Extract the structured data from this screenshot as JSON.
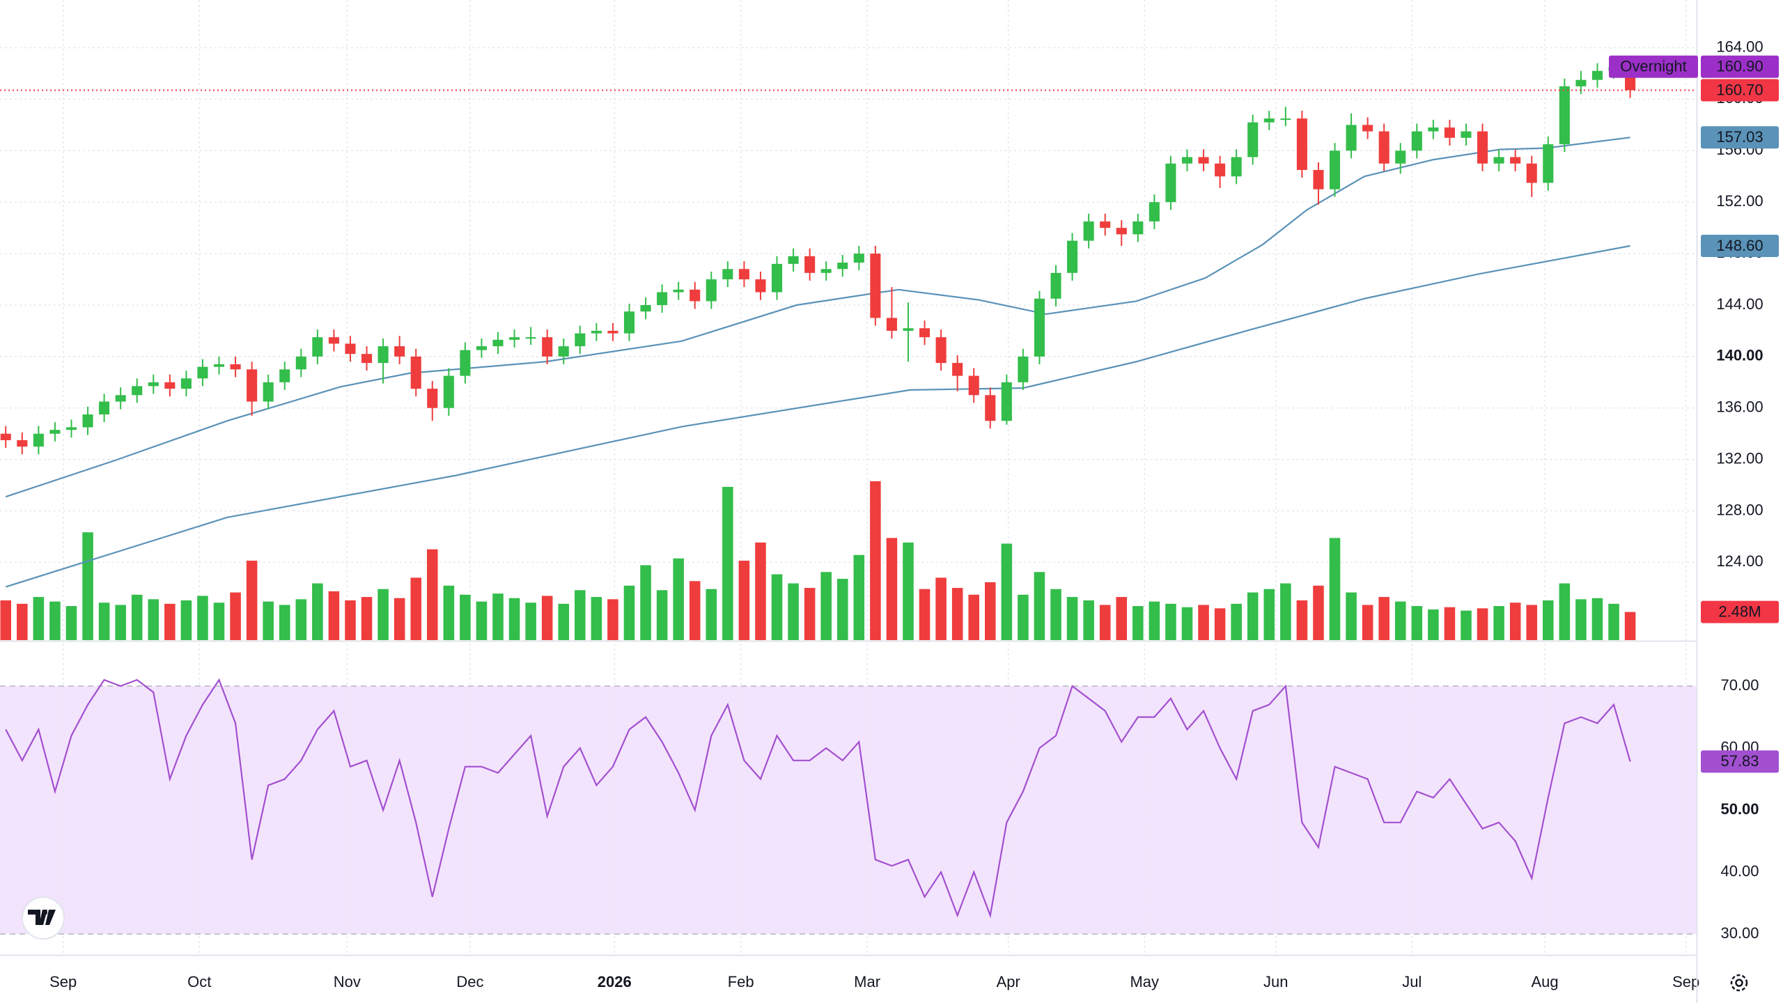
{
  "chart_data": {
    "type": "candlestick",
    "xlim": [
      -0.35,
      103.05
    ],
    "xticks": [
      {
        "value": 3.5,
        "label": "Sep"
      },
      {
        "value": 11.8,
        "label": "Oct"
      },
      {
        "value": 20.8,
        "label": "Nov"
      },
      {
        "value": 28.3,
        "label": "Dec"
      },
      {
        "value": 37.1,
        "label": "2026",
        "bold": true
      },
      {
        "value": 44.8,
        "label": "Feb"
      },
      {
        "value": 52.5,
        "label": "Mar"
      },
      {
        "value": 61.1,
        "label": "Apr"
      },
      {
        "value": 69.4,
        "label": "May"
      },
      {
        "value": 77.4,
        "label": "Jun"
      },
      {
        "value": 85.7,
        "label": "Jul"
      },
      {
        "value": 93.8,
        "label": "Aug"
      },
      {
        "value": 102.4,
        "label": "Sep"
      }
    ],
    "ylim": [
      117.96,
      167.71
    ],
    "yticks": [
      {
        "value": 124,
        "label": "124.00"
      },
      {
        "value": 128,
        "label": "128.00"
      },
      {
        "value": 132,
        "label": "132.00"
      },
      {
        "value": 136,
        "label": "136.00"
      },
      {
        "value": 140,
        "label": "140.00",
        "bold": true
      },
      {
        "value": 144,
        "label": "144.00"
      },
      {
        "value": 148,
        "label": "148.00"
      },
      {
        "value": 152,
        "label": "152.00"
      },
      {
        "value": 156,
        "label": "156.00"
      },
      {
        "value": 160,
        "label": "160.00"
      },
      {
        "value": 164,
        "label": "164.00"
      }
    ],
    "grid": true,
    "up_color": "#33bd4b",
    "down_color": "#ef3d3d",
    "candles": {
      "open": [
        134,
        133.5,
        133,
        134,
        134.3,
        134.5,
        135.5,
        136.5,
        137,
        137.7,
        138,
        137.5,
        138.3,
        139.2,
        139.4,
        139,
        136.5,
        138,
        139,
        140,
        141.5,
        141,
        140.2,
        139.5,
        140.8,
        140,
        137.5,
        136,
        138.5,
        140.5,
        140.8,
        141.3,
        141.5,
        141.5,
        140,
        140.8,
        141.8,
        142,
        141.8,
        143.5,
        144,
        145,
        145.2,
        144.3,
        146,
        146.8,
        146,
        145,
        147.2,
        147.8,
        146.5,
        146.8,
        147.3,
        148,
        143,
        142,
        142.2,
        141.5,
        139.5,
        138.5,
        137,
        135,
        138,
        140,
        144.5,
        146.5,
        149,
        150.5,
        150,
        149.5,
        150.5,
        152,
        155,
        155.5,
        155,
        154,
        155.5,
        158.2,
        158.5,
        158.5,
        154.5,
        153,
        156,
        158,
        157.5,
        155,
        156,
        157.5,
        157.8,
        157,
        157.5,
        155,
        155.5,
        155,
        153.5,
        156.5,
        161,
        161.5,
        162.2,
        162.5
      ],
      "high": [
        134.6,
        134.1,
        134.6,
        134.9,
        135.1,
        136.1,
        137.1,
        137.6,
        138.3,
        138.6,
        138.6,
        138.9,
        139.8,
        140,
        140,
        139.6,
        138.6,
        139.6,
        140.6,
        142.1,
        142.1,
        141.6,
        140.8,
        141.4,
        141.6,
        140.6,
        138.1,
        139.1,
        141.1,
        141.4,
        141.9,
        142.1,
        142.3,
        142.1,
        141.4,
        142.4,
        142.6,
        142.6,
        144.1,
        144.6,
        145.6,
        145.8,
        145.8,
        146.6,
        147.4,
        147.4,
        146.6,
        147.8,
        148.4,
        148.4,
        147.4,
        147.9,
        148.6,
        148.6,
        145.4,
        144.2,
        142.8,
        142.1,
        140.1,
        139.1,
        137.6,
        138.6,
        140.6,
        145.1,
        147.1,
        149.6,
        151.1,
        151.1,
        150.6,
        151.1,
        152.6,
        155.6,
        156.1,
        156.1,
        155.6,
        156.1,
        158.8,
        159.1,
        159.4,
        159.1,
        155.1,
        156.6,
        158.9,
        158.6,
        158.1,
        156.6,
        158.1,
        158.4,
        158.4,
        158.1,
        158.1,
        156.1,
        156.1,
        155.6,
        157.1,
        161.6,
        162.2,
        162.8,
        163.1,
        163.1
      ],
      "low": [
        132.9,
        132.4,
        132.4,
        133.4,
        133.7,
        133.9,
        134.9,
        135.9,
        136.4,
        137.1,
        136.9,
        136.9,
        137.7,
        138.6,
        138.4,
        135.4,
        135.9,
        137.4,
        138.4,
        139.4,
        140.4,
        139.6,
        138.9,
        137.9,
        139.4,
        136.9,
        135.0,
        135.4,
        137.9,
        139.9,
        140.2,
        140.7,
        140.9,
        139.4,
        139.4,
        140.2,
        141.2,
        141.2,
        141.2,
        142.9,
        143.4,
        144.4,
        143.7,
        143.7,
        145.4,
        145.4,
        144.4,
        144.4,
        146.6,
        145.9,
        145.9,
        146.2,
        146.7,
        142.4,
        141.4,
        139.6,
        140.9,
        138.9,
        137.3,
        136.4,
        134.4,
        134.7,
        137.4,
        139.4,
        143.9,
        145.9,
        148.4,
        149.4,
        148.6,
        148.9,
        149.9,
        151.4,
        154.4,
        154.4,
        153.1,
        153.4,
        154.9,
        157.6,
        157.9,
        153.9,
        151.8,
        152.4,
        155.4,
        156.9,
        154.4,
        154.2,
        155.4,
        156.9,
        156.4,
        156.4,
        154.4,
        154.4,
        154.4,
        152.4,
        152.9,
        155.9,
        160.4,
        160.9,
        161.6,
        160.1
      ],
      "close": [
        133.5,
        133,
        134,
        134.3,
        134.5,
        135.5,
        136.5,
        137,
        137.7,
        138,
        137.5,
        138.3,
        139.2,
        139.4,
        139,
        136.5,
        138,
        139,
        140,
        141.5,
        141,
        140.2,
        139.5,
        140.8,
        140,
        137.5,
        136,
        138.5,
        140.5,
        140.8,
        141.3,
        141.5,
        141.5,
        140,
        140.8,
        141.8,
        142,
        141.8,
        143.5,
        144,
        145,
        145.2,
        144.3,
        146,
        146.8,
        146,
        145,
        147.2,
        147.8,
        146.5,
        146.8,
        147.3,
        148,
        143,
        142,
        142.2,
        141.5,
        139.5,
        138.5,
        137,
        135,
        138,
        140,
        144.5,
        146.5,
        149,
        150.5,
        150,
        149.5,
        150.5,
        152,
        155,
        155.5,
        155,
        154,
        155.5,
        158.2,
        158.5,
        158.5,
        154.5,
        153,
        156,
        158,
        157.5,
        155,
        156,
        157.5,
        157.8,
        157,
        157.5,
        155,
        155.5,
        155,
        153.5,
        156.5,
        161,
        161.5,
        162.2,
        162.5,
        160.7
      ]
    },
    "last_price": {
      "value": 160.7,
      "label": "160.70",
      "color": "#f23645"
    },
    "overnight": {
      "name": "Overnight",
      "value": 160.9,
      "label": "160.90",
      "color": "#9c2fc8"
    },
    "moving_averages": [
      {
        "x": [
          0,
          6.6,
          13.5,
          20.4,
          24.6,
          32.9,
          41.2,
          48.2,
          54.4,
          59.3,
          63.4,
          68.9,
          73.1,
          76.6,
          79.3,
          82.8,
          87,
          91.1,
          93.9,
          99
        ],
        "values": [
          129.1,
          131.9,
          135.0,
          137.65,
          138.7,
          139.6,
          141.2,
          144.0,
          145.2,
          144.4,
          143.3,
          144.3,
          146.1,
          148.7,
          151.4,
          154.0,
          155.3,
          156.1,
          156.2,
          157.03
        ],
        "color": "#5a92b8",
        "end_label": "157.03"
      },
      {
        "x": [
          0,
          13.5,
          27.4,
          41.2,
          55.1,
          62,
          68.9,
          75.9,
          82.8,
          89.7,
          99
        ],
        "values": [
          122.1,
          127.5,
          130.75,
          134.55,
          137.4,
          137.55,
          139.6,
          142.1,
          144.5,
          146.4,
          148.6
        ],
        "color": "#5a92b8",
        "end_label": "148.60"
      }
    ],
    "volume": {
      "ylim": [
        0,
        56.4
      ],
      "values": [
        3.5,
        3.2,
        3.8,
        3.4,
        3.0,
        9.5,
        3.3,
        3.1,
        4.0,
        3.6,
        3.2,
        3.5,
        3.9,
        3.3,
        4.2,
        7.0,
        3.4,
        3.1,
        3.6,
        5.0,
        4.3,
        3.5,
        3.8,
        4.5,
        3.7,
        5.5,
        8.0,
        4.8,
        4.0,
        3.4,
        4.1,
        3.7,
        3.3,
        3.9,
        3.2,
        4.4,
        3.8,
        3.6,
        4.8,
        6.6,
        4.4,
        7.2,
        5.2,
        4.5,
        13.5,
        7.0,
        8.6,
        5.8,
        5.0,
        4.6,
        6.0,
        5.4,
        7.5,
        14.0,
        9.0,
        8.6,
        4.5,
        5.5,
        4.6,
        4.0,
        5.1,
        8.5,
        4.0,
        6.0,
        4.5,
        3.8,
        3.5,
        3.1,
        3.8,
        3.0,
        3.4,
        3.2,
        2.9,
        3.1,
        2.8,
        3.2,
        4.2,
        4.5,
        5.0,
        3.5,
        4.8,
        9.0,
        4.2,
        3.1,
        3.8,
        3.4,
        3.0,
        2.7,
        2.9,
        2.6,
        2.8,
        3.0,
        3.3,
        3.1,
        3.5,
        5.0,
        3.6,
        3.7,
        3.2,
        2.48
      ],
      "end_label": "2.48M",
      "color": "#f23645"
    },
    "rsi": {
      "ylim": [
        26.63,
        77.08
      ],
      "levels": [
        30,
        70
      ],
      "color": "#a24fd0",
      "band_color": "#f3e4fd",
      "yticks": [
        {
          "value": 30,
          "label": "30.00"
        },
        {
          "value": 40,
          "label": "40.00"
        },
        {
          "value": 50,
          "label": "50.00",
          "bold": true
        },
        {
          "value": 60,
          "label": "60.00"
        },
        {
          "value": 70,
          "label": "70.00"
        }
      ],
      "values": [
        63,
        58,
        63,
        53,
        62,
        67,
        71,
        70,
        71,
        69,
        55,
        62,
        67,
        71,
        64,
        42,
        54,
        55,
        58,
        63,
        66,
        57,
        58,
        50,
        58,
        48,
        36,
        47,
        57,
        57,
        56,
        59,
        62,
        49,
        57,
        60,
        54,
        57,
        63,
        65,
        61,
        56,
        50,
        62,
        67,
        58,
        55,
        62,
        58,
        58,
        60,
        58,
        61,
        42,
        41,
        42,
        36,
        40,
        33,
        40,
        33,
        48,
        53,
        60,
        62,
        70,
        68,
        66,
        61,
        65,
        65,
        68,
        63,
        66,
        60,
        55,
        66,
        67,
        70,
        48,
        44,
        57,
        56,
        55,
        48,
        48,
        53,
        52,
        55,
        51,
        47,
        48,
        45,
        39,
        52,
        64,
        65,
        64,
        67,
        57.83
      ]
    }
  }
}
